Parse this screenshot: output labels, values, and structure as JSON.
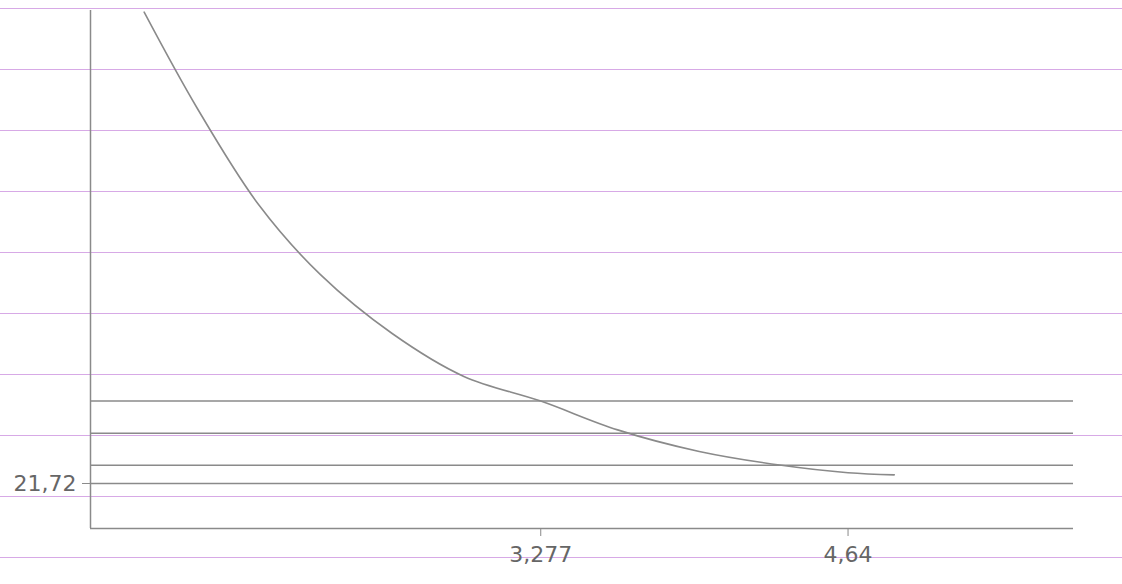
{
  "chart_data": {
    "type": "line",
    "x": [
      1.518,
      1.754,
      2.027,
      2.3,
      2.618,
      2.936,
      3.277,
      3.618,
      3.98,
      4.345,
      4.64,
      4.845
    ],
    "series": [
      {
        "values": [
          249.2,
          202.7,
          156.1,
          122.5,
          94.1,
          73.4,
          61.5,
          47.6,
          37.2,
          30.5,
          26.9,
          25.9
        ],
        "color": "#8a8a8a"
      }
    ],
    "hlines": [
      61.5,
      46,
      30.5,
      21.72
    ],
    "color": "#8a8a8a",
    "xlim": [
      1.28,
      5.64
    ],
    "ylim": [
      0,
      250
    ],
    "xticks": [
      {
        "value": 3.277,
        "label": "3,277"
      },
      {
        "value": 4.64,
        "label": "4,64"
      }
    ],
    "yticks": [
      {
        "value": 21.72,
        "label": "21,72"
      }
    ],
    "grid": false
  }
}
